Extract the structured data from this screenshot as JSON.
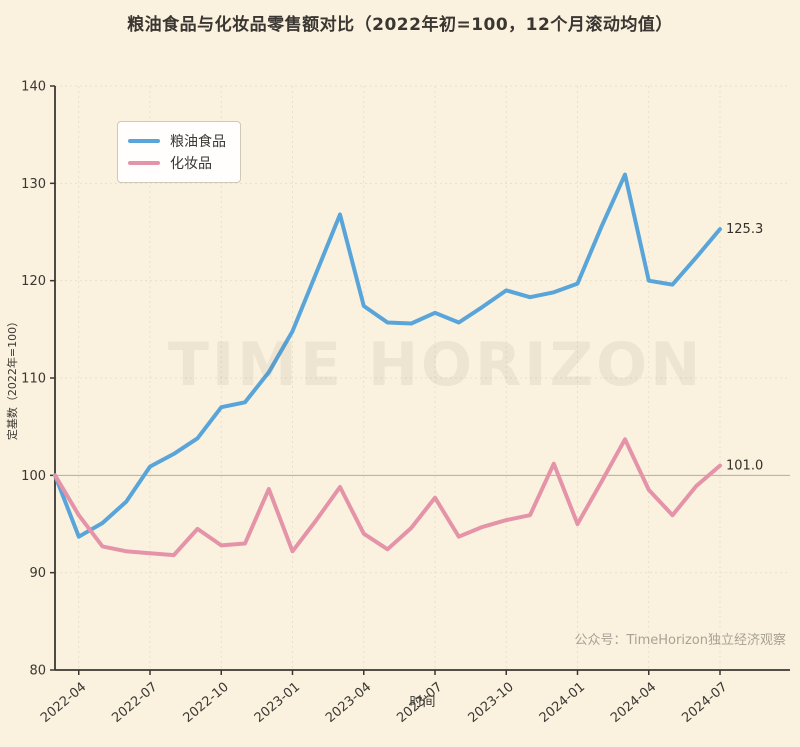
{
  "title": "粮油食品与化妆品零售额对比（2022年初=100，12个月滚动均值）",
  "watermark": "TIME HORIZON",
  "source_note": "公众号：TimeHorizon独立经济观察",
  "colors": {
    "background": "#faf2df",
    "grid": "#e9e0c9",
    "reference_line": "#b3ada0",
    "axis": "#3a3632",
    "grain_oil_blue": "#59a5da",
    "cosmetics_pink": "#e593a8",
    "tick_text": "#3b3733",
    "note_gray": "#a9a294"
  },
  "chart_data": {
    "type": "line",
    "x": [
      "2022-03",
      "2022-04",
      "2022-05",
      "2022-06",
      "2022-07",
      "2022-08",
      "2022-09",
      "2022-10",
      "2022-11",
      "2022-12",
      "2023-01",
      "2023-02",
      "2023-03",
      "2023-04",
      "2023-05",
      "2023-06",
      "2023-07",
      "2023-08",
      "2023-09",
      "2023-10",
      "2023-11",
      "2023-12",
      "2024-01",
      "2024-02",
      "2024-03",
      "2024-04",
      "2024-05",
      "2024-06",
      "2024-07"
    ],
    "x_tick_labels": [
      "2022-04",
      "2022-07",
      "2022-10",
      "2023-01",
      "2023-04",
      "2023-07",
      "2023-10",
      "2024-01",
      "2024-04",
      "2024-07"
    ],
    "x_tick_indices": [
      1,
      4,
      7,
      10,
      13,
      16,
      19,
      22,
      25,
      28
    ],
    "series": [
      {
        "name": "粮油食品",
        "color": "#59a5da",
        "values": [
          100.0,
          93.7,
          95.1,
          97.3,
          100.9,
          102.2,
          103.8,
          107.0,
          107.5,
          110.6,
          114.8,
          120.8,
          126.8,
          117.4,
          115.7,
          115.6,
          116.7,
          115.7,
          117.3,
          119.0,
          118.3,
          118.8,
          119.7,
          125.5,
          130.9,
          120.0,
          119.6,
          122.4,
          125.3
        ]
      },
      {
        "name": "化妆品",
        "color": "#e593a8",
        "values": [
          100.0,
          95.9,
          92.7,
          92.2,
          92.0,
          91.8,
          94.5,
          92.8,
          93.0,
          98.6,
          92.2,
          95.4,
          98.8,
          94.0,
          92.4,
          94.6,
          97.7,
          93.7,
          94.7,
          95.4,
          95.9,
          101.2,
          95.0,
          99.3,
          103.7,
          98.5,
          95.9,
          98.9,
          101.0
        ]
      }
    ],
    "end_labels": [
      "125.3",
      "101.0"
    ],
    "xlabel": "时间",
    "ylabel": "定基数（2022年=100）",
    "ylim": [
      80,
      140
    ],
    "yticks": [
      80,
      90,
      100,
      110,
      120,
      130,
      140
    ],
    "reference_line": 100,
    "grid": true,
    "legend_position": "upper-left"
  }
}
